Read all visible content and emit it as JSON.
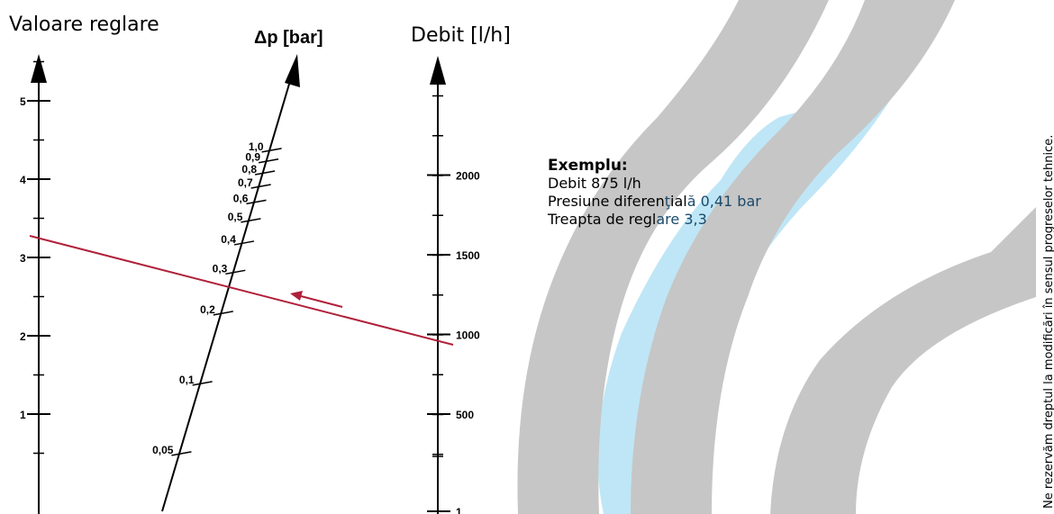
{
  "axes": {
    "left": {
      "title": "Valoare reglare",
      "ticks": [
        {
          "value": 1,
          "label": "1"
        },
        {
          "value": 2,
          "label": "2"
        },
        {
          "value": 3,
          "label": "3"
        },
        {
          "value": 4,
          "label": "4"
        },
        {
          "value": 5,
          "label": "5"
        }
      ]
    },
    "middle": {
      "title": "Δp [bar]",
      "ticks": [
        {
          "value": 0.05,
          "label": "0,05"
        },
        {
          "value": 0.1,
          "label": "0,1"
        },
        {
          "value": 0.2,
          "label": "0,2"
        },
        {
          "value": 0.3,
          "label": "0,3"
        },
        {
          "value": 0.4,
          "label": "0,4"
        },
        {
          "value": 0.5,
          "label": "0,5"
        },
        {
          "value": 0.6,
          "label": "0,6"
        },
        {
          "value": 0.7,
          "label": "0,7"
        },
        {
          "value": 0.8,
          "label": "0,8"
        },
        {
          "value": 0.9,
          "label": "0,9"
        },
        {
          "value": 1.0,
          "label": "1,0"
        }
      ]
    },
    "right": {
      "title": "Debit [l/h]",
      "ticks": [
        {
          "value": 1,
          "label": "1"
        },
        {
          "value": 500,
          "label": "500"
        },
        {
          "value": 1000,
          "label": "1000"
        },
        {
          "value": 1500,
          "label": "1500"
        },
        {
          "value": 2000,
          "label": "2000"
        }
      ]
    }
  },
  "example": {
    "title": "Exemplu:",
    "line1": "Debit 875 l/h",
    "line2_a": "Presiune diferen",
    "line2_b": "ţ",
    "line2_c": "ial",
    "line2_d": "ă 0,41 bar",
    "line3_a": "Treapta de regl",
    "line3_b": "are 3,3",
    "flow": 875,
    "pressure": 0.41,
    "setting": 3.3
  },
  "disclaimer": "Ne rezervăm dreptul la modificări în sensul progreselor tehnice.",
  "colors": {
    "ink": "#000000",
    "example_line": "#b0203a",
    "band_gray": "#c6c6c6",
    "water": "#bfe6f6"
  }
}
